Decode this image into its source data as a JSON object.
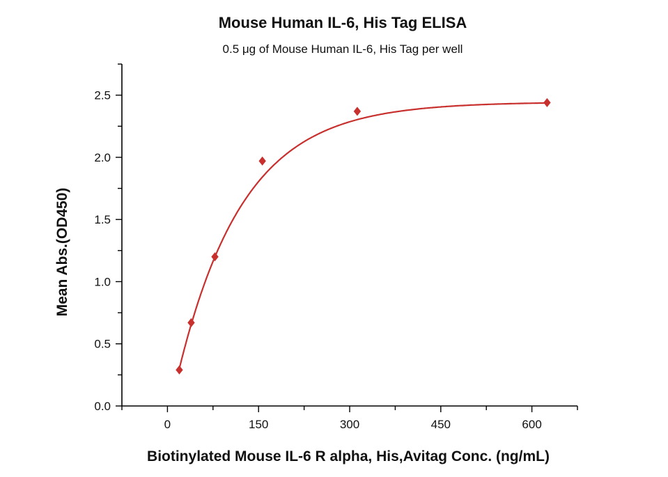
{
  "chart_data": {
    "type": "scatter",
    "title": "Mouse Human IL-6, His Tag ELISA",
    "subtitle": "0.5 μg of Mouse Human IL-6, His Tag per well",
    "xlabel": "Biotinylated Mouse IL-6 R alpha, His,Avitag Conc. (ng/mL)",
    "ylabel": "Mean Abs.(OD450)",
    "xlim": [
      -75,
      675
    ],
    "ylim": [
      0,
      2.75
    ],
    "xticks": [
      "0",
      "150",
      "300",
      "450",
      "600"
    ],
    "yticks": [
      "0.0",
      "0.5",
      "1.0",
      "1.5",
      "2.0",
      "2.5"
    ],
    "grid": false,
    "marker": "diamond",
    "fit_curve": true,
    "color": "#c8302e",
    "series": [
      {
        "x": [
          19.53,
          39.06,
          78.13,
          156.25,
          312.5,
          625
        ],
        "y": [
          0.29,
          0.67,
          1.2,
          1.97,
          2.37,
          2.44
        ]
      }
    ]
  }
}
